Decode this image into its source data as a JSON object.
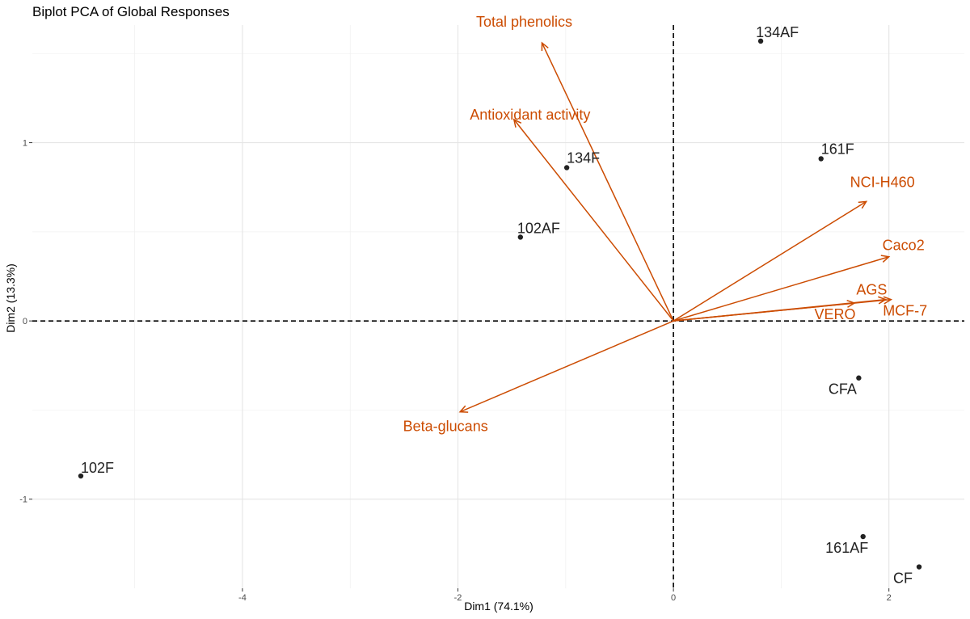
{
  "chart_data": {
    "type": "scatter",
    "title": "Biplot PCA of Global Responses",
    "xlabel": "Dim1 (74.1%)",
    "ylabel": "Dim2 (13.3%)",
    "xlim": [
      -5.95,
      2.7
    ],
    "ylim": [
      -1.5,
      1.66
    ],
    "x_ticks": [
      -4,
      -2,
      0,
      2
    ],
    "x_tick_labels": [
      "-4",
      "-2",
      "0",
      "2"
    ],
    "y_ticks": [
      -1,
      0,
      1
    ],
    "y_tick_labels": [
      "-1",
      "0",
      "1"
    ],
    "x_minor_ticks": [
      -5,
      -3,
      -1,
      1
    ],
    "y_minor_ticks": [
      -0.5,
      0.5,
      1.5
    ],
    "grid": true,
    "reference_lines": {
      "x": 0,
      "y": 0,
      "style": "dashed"
    },
    "points": [
      {
        "label": "134AF",
        "x": 0.81,
        "y": 1.57
      },
      {
        "label": "161F",
        "x": 1.37,
        "y": 0.91
      },
      {
        "label": "134F",
        "x": -0.99,
        "y": 0.86
      },
      {
        "label": "102AF",
        "x": -1.42,
        "y": 0.47
      },
      {
        "label": "CFA",
        "x": 1.72,
        "y": -0.32
      },
      {
        "label": "102F",
        "x": -5.5,
        "y": -0.87
      },
      {
        "label": "161AF",
        "x": 1.76,
        "y": -1.21
      },
      {
        "label": "CF",
        "x": 2.28,
        "y": -1.38
      }
    ],
    "arrows": [
      {
        "label": "Total phenolics",
        "x": -1.22,
        "y": 1.56
      },
      {
        "label": "Antioxidant activity",
        "x": -1.48,
        "y": 1.13
      },
      {
        "label": "NCI-H460",
        "x": 1.79,
        "y": 0.67
      },
      {
        "label": "Caco2",
        "x": 2.0,
        "y": 0.36
      },
      {
        "label": "AGS",
        "x": 2.02,
        "y": 0.12
      },
      {
        "label": "VERO",
        "x": 1.68,
        "y": 0.1
      },
      {
        "label": "MCF-7",
        "x": 1.97,
        "y": 0.12
      },
      {
        "label": "Beta-glucans",
        "x": -1.98,
        "y": -0.51
      }
    ],
    "colors": {
      "points": "#222222",
      "arrows": "#cc4c02",
      "reference_lines": "#000000"
    }
  }
}
